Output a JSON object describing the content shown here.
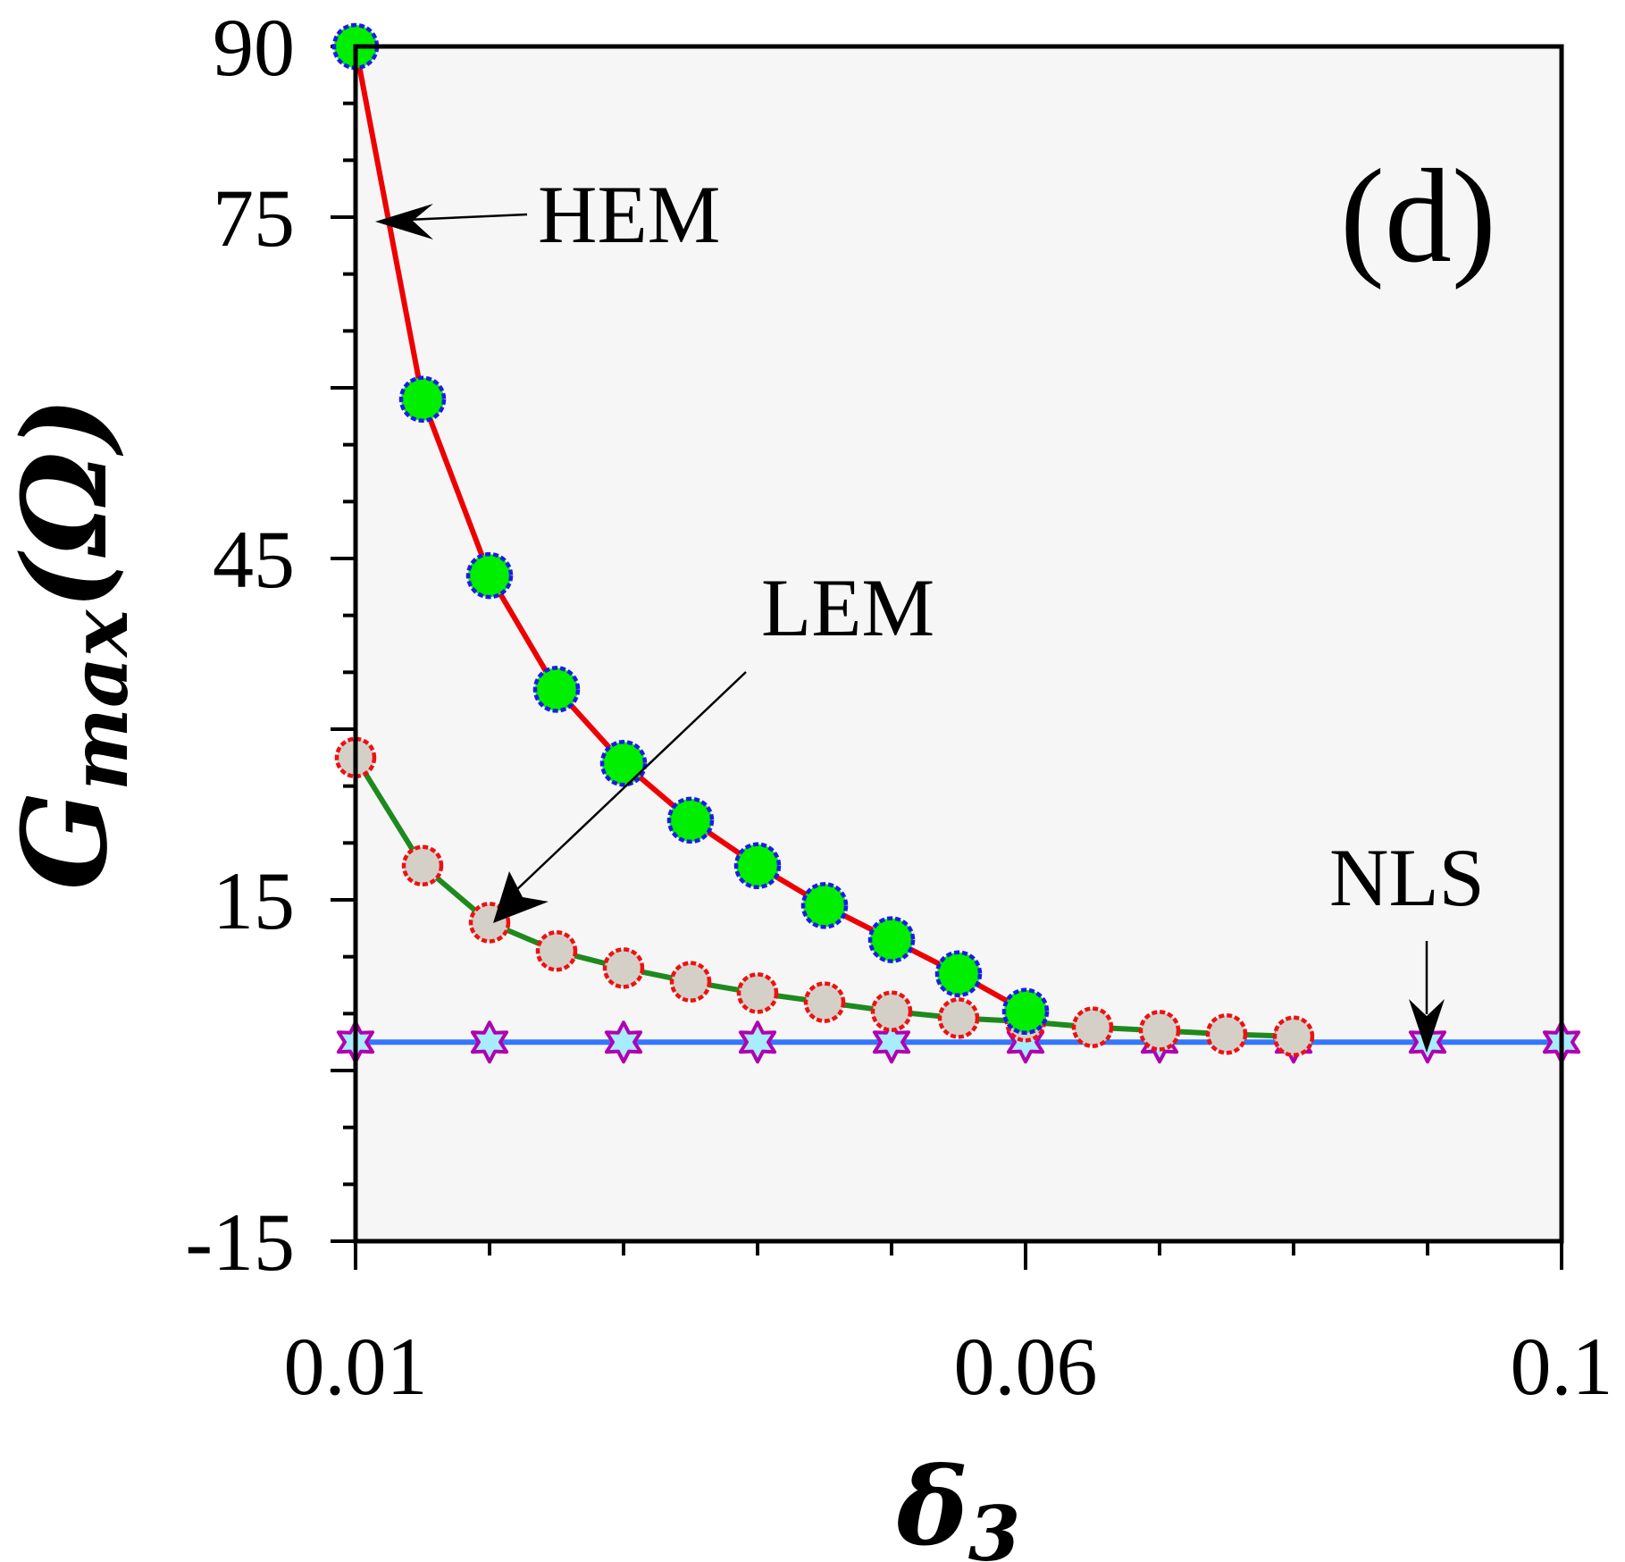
{
  "chart_data": {
    "type": "line",
    "panel_label": "(d)",
    "xlabel": {
      "main": "δ",
      "sub": "3"
    },
    "ylabel": {
      "main": "G",
      "sub": "max",
      "arg": "(Ω)"
    },
    "xlim": [
      0.01,
      0.1
    ],
    "ylim": [
      -15,
      90
    ],
    "xticks": [
      0.01,
      0.02,
      0.03,
      0.04,
      0.05,
      0.06,
      0.07,
      0.08,
      0.09,
      0.1
    ],
    "xtick_labels": [
      {
        "value": 0.01,
        "label": "0.01"
      },
      {
        "value": 0.06,
        "label": "0.06"
      },
      {
        "value": 0.1,
        "label": "0.1"
      }
    ],
    "ytick_labels": [
      {
        "value": 90,
        "label": "90"
      },
      {
        "value": 75,
        "label": "75"
      },
      {
        "value": 45,
        "label": "45"
      },
      {
        "value": 15,
        "label": "15"
      },
      {
        "value": -15,
        "label": "-15"
      }
    ],
    "series": [
      {
        "name": "HEM",
        "line_color": "#ee0000",
        "marker": "circle",
        "marker_fill": "#00ee00",
        "marker_edge": "#1a1aee",
        "x": [
          0.01,
          0.015,
          0.02,
          0.025,
          0.03,
          0.035,
          0.04,
          0.045,
          0.05,
          0.055,
          0.06
        ],
        "y": [
          90,
          59,
          43.5,
          33.5,
          27,
          22,
          18,
          14.5,
          11.5,
          8.5,
          5.2
        ]
      },
      {
        "name": "LEM",
        "line_color": "#1e8a1e",
        "marker": "circle",
        "marker_fill": "#d4d0c8",
        "marker_edge": "#ee1111",
        "x": [
          0.01,
          0.015,
          0.02,
          0.025,
          0.03,
          0.035,
          0.04,
          0.045,
          0.05,
          0.055,
          0.06,
          0.065,
          0.07,
          0.075,
          0.08
        ],
        "y": [
          27.5,
          18,
          13,
          10.5,
          9,
          7.8,
          6.8,
          6,
          5.2,
          4.6,
          4.3,
          3.8,
          3.5,
          3.2,
          3
        ]
      },
      {
        "name": "NLS",
        "line_color": "#3377ff",
        "marker": "star6",
        "marker_fill": "#a8ecff",
        "marker_edge": "#b000b0",
        "x": [
          0.01,
          0.02,
          0.03,
          0.04,
          0.05,
          0.06,
          0.07,
          0.08,
          0.09,
          0.1
        ],
        "y": [
          2.5,
          2.5,
          2.5,
          2.5,
          2.5,
          2.5,
          2.5,
          2.5,
          2.5,
          2.5
        ]
      }
    ],
    "annotations": [
      {
        "text": "HEM",
        "points_to": [
          0.0102,
          75
        ]
      },
      {
        "text": "LEM",
        "points_to": [
          0.0202,
          13
        ]
      },
      {
        "text": "NLS",
        "points_to": [
          0.09,
          2.5
        ]
      }
    ]
  }
}
